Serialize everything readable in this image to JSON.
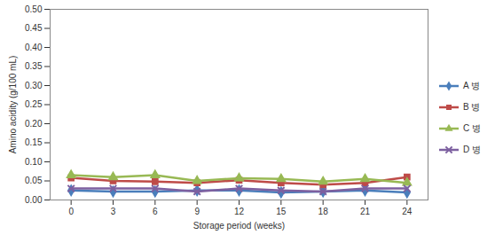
{
  "chart_data": {
    "type": "line",
    "x_label": "Storage period (weeks)",
    "y_label": "Amino acidity (g/100 mL)",
    "x": [
      0,
      3,
      6,
      9,
      12,
      15,
      18,
      21,
      24
    ],
    "xlim": [
      -1.5,
      25.5
    ],
    "xticks": [
      0,
      3,
      6,
      9,
      12,
      15,
      18,
      21,
      24
    ],
    "ylim": [
      0,
      0.5
    ],
    "yticks": [
      {
        "value": 0,
        "label": "0.00"
      },
      {
        "value": 0.05,
        "label": "0.05"
      },
      {
        "value": 0.1,
        "label": "0.10"
      },
      {
        "value": 0.15,
        "label": "0.15"
      },
      {
        "value": 0.2,
        "label": "0.20"
      },
      {
        "value": 0.25,
        "label": "0.25"
      },
      {
        "value": 0.3,
        "label": "0.30"
      },
      {
        "value": 0.35,
        "label": "0.35"
      },
      {
        "value": 0.4,
        "label": "0.40"
      },
      {
        "value": 0.45,
        "label": "0.45"
      },
      {
        "value": 0.5,
        "label": "0.50"
      }
    ],
    "grid": false,
    "legend": "right",
    "series": [
      {
        "name": "A 병",
        "color": "#4a7ebb",
        "marker": "diamond",
        "values": [
          0.025,
          0.022,
          0.022,
          0.025,
          0.025,
          0.02,
          0.022,
          0.025,
          0.02
        ]
      },
      {
        "name": "B 병",
        "color": "#be4b48",
        "marker": "square",
        "values": [
          0.058,
          0.05,
          0.048,
          0.045,
          0.052,
          0.045,
          0.04,
          0.045,
          0.06
        ]
      },
      {
        "name": "C 병",
        "color": "#98b954",
        "marker": "triangle",
        "values": [
          0.065,
          0.06,
          0.065,
          0.05,
          0.057,
          0.055,
          0.048,
          0.055,
          0.045
        ]
      },
      {
        "name": "D 병",
        "color": "#7d60a0",
        "marker": "x",
        "values": [
          0.03,
          0.03,
          0.03,
          0.022,
          0.03,
          0.025,
          0.022,
          0.03,
          0.03
        ]
      }
    ]
  }
}
